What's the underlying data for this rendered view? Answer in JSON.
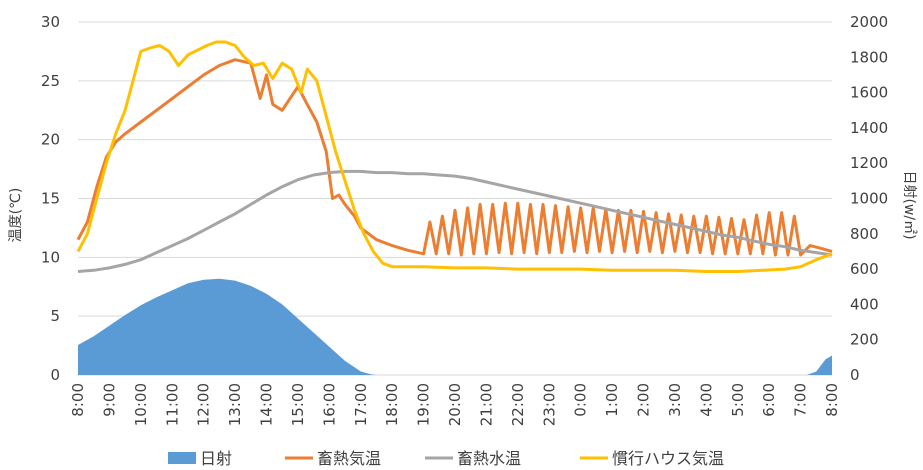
{
  "chart_data": {
    "type": "line",
    "ylabel_left": "温度(℃)",
    "ylabel_right": "日射(w/㎡)",
    "y_left_range": [
      0,
      30
    ],
    "y_left_ticks": [
      "0",
      "5",
      "10",
      "15",
      "20",
      "25",
      "30"
    ],
    "y_right_range": [
      0,
      2000
    ],
    "y_right_ticks": [
      "0",
      "200",
      "400",
      "600",
      "800",
      "1000",
      "1200",
      "1400",
      "1600",
      "1800",
      "2000"
    ],
    "x_ticks": [
      "8:00",
      "9:00",
      "10:00",
      "11:00",
      "12:00",
      "13:00",
      "14:00",
      "15:00",
      "16:00",
      "17:00",
      "18:00",
      "19:00",
      "20:00",
      "21:00",
      "22:00",
      "23:00",
      "0:00",
      "1:00",
      "2:00",
      "3:00",
      "4:00",
      "5:00",
      "6:00",
      "7:00",
      "8:00"
    ],
    "grid": "horizontal",
    "legend_position": "bottom",
    "series": [
      {
        "name": "日射",
        "type": "area",
        "axis": "right",
        "color": "#5b9bd5",
        "points": [
          [
            0,
            170
          ],
          [
            0.5,
            220
          ],
          [
            1,
            280
          ],
          [
            1.5,
            340
          ],
          [
            2,
            395
          ],
          [
            2.5,
            440
          ],
          [
            3,
            480
          ],
          [
            3.5,
            520
          ],
          [
            4,
            540
          ],
          [
            4.5,
            545
          ],
          [
            5,
            535
          ],
          [
            5.5,
            505
          ],
          [
            6,
            460
          ],
          [
            6.5,
            400
          ],
          [
            7,
            320
          ],
          [
            7.5,
            240
          ],
          [
            8,
            160
          ],
          [
            8.5,
            80
          ],
          [
            9,
            20
          ],
          [
            9.3,
            5
          ],
          [
            9.5,
            0
          ],
          [
            23.2,
            0
          ],
          [
            23.5,
            20
          ],
          [
            23.8,
            90
          ],
          [
            24,
            110
          ]
        ]
      },
      {
        "name": "畜熱気温",
        "type": "line",
        "axis": "left",
        "color": "#ed7d31",
        "points": [
          [
            0,
            11.5
          ],
          [
            0.3,
            13
          ],
          [
            0.6,
            16
          ],
          [
            0.9,
            18.5
          ],
          [
            1.2,
            19.8
          ],
          [
            1.5,
            20.5
          ],
          [
            2,
            21.5
          ],
          [
            2.5,
            22.5
          ],
          [
            3,
            23.5
          ],
          [
            3.5,
            24.5
          ],
          [
            4,
            25.5
          ],
          [
            4.5,
            26.3
          ],
          [
            5,
            26.8
          ],
          [
            5.5,
            26.5
          ],
          [
            5.8,
            23.5
          ],
          [
            6,
            25.5
          ],
          [
            6.2,
            23
          ],
          [
            6.5,
            22.5
          ],
          [
            7,
            24.5
          ],
          [
            7.3,
            23
          ],
          [
            7.6,
            21.5
          ],
          [
            7.9,
            19
          ],
          [
            8.1,
            15
          ],
          [
            8.3,
            15.3
          ],
          [
            8.5,
            14.5
          ],
          [
            8.8,
            13.5
          ],
          [
            9,
            12.5
          ],
          [
            9.5,
            11.5
          ],
          [
            10,
            11
          ],
          [
            10.5,
            10.6
          ],
          [
            11,
            10.3
          ],
          [
            11.2,
            13
          ],
          [
            11.4,
            10.3
          ],
          [
            11.6,
            13.5
          ],
          [
            11.8,
            10.3
          ],
          [
            12,
            14
          ],
          [
            12.2,
            10.2
          ],
          [
            12.4,
            14.2
          ],
          [
            12.6,
            10.3
          ],
          [
            12.8,
            14.5
          ],
          [
            13,
            10.3
          ],
          [
            13.2,
            14.5
          ],
          [
            13.4,
            10.4
          ],
          [
            13.6,
            14.6
          ],
          [
            13.8,
            10.3
          ],
          [
            14,
            14.6
          ],
          [
            14.2,
            10.4
          ],
          [
            14.4,
            14.5
          ],
          [
            14.6,
            10.3
          ],
          [
            14.8,
            14.5
          ],
          [
            15,
            10.4
          ],
          [
            15.2,
            14.4
          ],
          [
            15.4,
            10.4
          ],
          [
            15.6,
            14.3
          ],
          [
            15.8,
            10.5
          ],
          [
            16,
            14.2
          ],
          [
            16.2,
            10.4
          ],
          [
            16.4,
            14.2
          ],
          [
            16.6,
            10.5
          ],
          [
            16.8,
            14.1
          ],
          [
            17,
            10.4
          ],
          [
            17.2,
            14
          ],
          [
            17.4,
            10.5
          ],
          [
            17.6,
            14
          ],
          [
            17.8,
            10.4
          ],
          [
            18,
            13.9
          ],
          [
            18.2,
            10.5
          ],
          [
            18.4,
            13.8
          ],
          [
            18.6,
            10.4
          ],
          [
            18.8,
            13.7
          ],
          [
            19,
            10.5
          ],
          [
            19.2,
            13.6
          ],
          [
            19.4,
            10.4
          ],
          [
            19.6,
            13.5
          ],
          [
            19.8,
            10.4
          ],
          [
            20,
            13.5
          ],
          [
            20.2,
            10.3
          ],
          [
            20.4,
            13.4
          ],
          [
            20.6,
            10.3
          ],
          [
            20.8,
            13.3
          ],
          [
            21,
            10.3
          ],
          [
            21.2,
            13.2
          ],
          [
            21.4,
            10.3
          ],
          [
            21.6,
            13.6
          ],
          [
            21.8,
            10.3
          ],
          [
            22,
            13.8
          ],
          [
            22.2,
            10.2
          ],
          [
            22.4,
            13.8
          ],
          [
            22.6,
            10.2
          ],
          [
            22.8,
            13.5
          ],
          [
            23,
            10.2
          ],
          [
            23.3,
            11
          ],
          [
            23.6,
            10.8
          ],
          [
            24,
            10.5
          ]
        ]
      },
      {
        "name": "畜熱水温",
        "type": "line",
        "axis": "left",
        "color": "#a5a5a5",
        "points": [
          [
            0,
            8.8
          ],
          [
            0.5,
            8.9
          ],
          [
            1,
            9.1
          ],
          [
            1.5,
            9.4
          ],
          [
            2,
            9.8
          ],
          [
            2.5,
            10.4
          ],
          [
            3,
            11
          ],
          [
            3.5,
            11.6
          ],
          [
            4,
            12.3
          ],
          [
            4.5,
            13
          ],
          [
            5,
            13.7
          ],
          [
            5.5,
            14.5
          ],
          [
            6,
            15.3
          ],
          [
            6.5,
            16
          ],
          [
            7,
            16.6
          ],
          [
            7.5,
            17
          ],
          [
            8,
            17.2
          ],
          [
            8.5,
            17.3
          ],
          [
            9,
            17.3
          ],
          [
            9.5,
            17.2
          ],
          [
            10,
            17.2
          ],
          [
            10.5,
            17.1
          ],
          [
            11,
            17.1
          ],
          [
            11.5,
            17
          ],
          [
            12,
            16.9
          ],
          [
            12.5,
            16.7
          ],
          [
            13,
            16.4
          ],
          [
            13.5,
            16.1
          ],
          [
            14,
            15.8
          ],
          [
            14.5,
            15.5
          ],
          [
            15,
            15.2
          ],
          [
            15.5,
            14.9
          ],
          [
            16,
            14.6
          ],
          [
            16.5,
            14.3
          ],
          [
            17,
            14
          ],
          [
            17.5,
            13.7
          ],
          [
            18,
            13.4
          ],
          [
            18.5,
            13.1
          ],
          [
            19,
            12.8
          ],
          [
            19.5,
            12.5
          ],
          [
            20,
            12.2
          ],
          [
            20.5,
            11.9
          ],
          [
            21,
            11.7
          ],
          [
            21.5,
            11.4
          ],
          [
            22,
            11.1
          ],
          [
            22.5,
            10.9
          ],
          [
            23,
            10.6
          ],
          [
            23.5,
            10.4
          ],
          [
            24,
            10.2
          ]
        ]
      },
      {
        "name": "慣行ハウス気温",
        "type": "line",
        "axis": "left",
        "color": "#ffc000",
        "points": [
          [
            0,
            10.5
          ],
          [
            0.3,
            12
          ],
          [
            0.6,
            15
          ],
          [
            0.9,
            18
          ],
          [
            1.2,
            20.5
          ],
          [
            1.5,
            22.5
          ],
          [
            1.8,
            25.5
          ],
          [
            2,
            27.5
          ],
          [
            2.3,
            27.8
          ],
          [
            2.6,
            28
          ],
          [
            2.9,
            27.5
          ],
          [
            3.2,
            26.3
          ],
          [
            3.5,
            27.2
          ],
          [
            3.8,
            27.6
          ],
          [
            4.1,
            28
          ],
          [
            4.4,
            28.3
          ],
          [
            4.7,
            28.3
          ],
          [
            5,
            28
          ],
          [
            5.3,
            27
          ],
          [
            5.6,
            26.3
          ],
          [
            5.9,
            26.5
          ],
          [
            6.2,
            25.2
          ],
          [
            6.5,
            26.5
          ],
          [
            6.8,
            26
          ],
          [
            7.1,
            24
          ],
          [
            7.3,
            26
          ],
          [
            7.6,
            25
          ],
          [
            7.9,
            22
          ],
          [
            8.2,
            19
          ],
          [
            8.5,
            16.5
          ],
          [
            8.8,
            14
          ],
          [
            9.1,
            12
          ],
          [
            9.4,
            10.5
          ],
          [
            9.7,
            9.5
          ],
          [
            10,
            9.2
          ],
          [
            11,
            9.2
          ],
          [
            12,
            9.1
          ],
          [
            13,
            9.1
          ],
          [
            14,
            9.0
          ],
          [
            15,
            9.0
          ],
          [
            16,
            9.0
          ],
          [
            17,
            8.9
          ],
          [
            18,
            8.9
          ],
          [
            19,
            8.9
          ],
          [
            20,
            8.8
          ],
          [
            21,
            8.8
          ],
          [
            21.8,
            8.9
          ],
          [
            22.5,
            9.0
          ],
          [
            23,
            9.2
          ],
          [
            23.5,
            9.8
          ],
          [
            24,
            10.3
          ]
        ]
      }
    ]
  }
}
